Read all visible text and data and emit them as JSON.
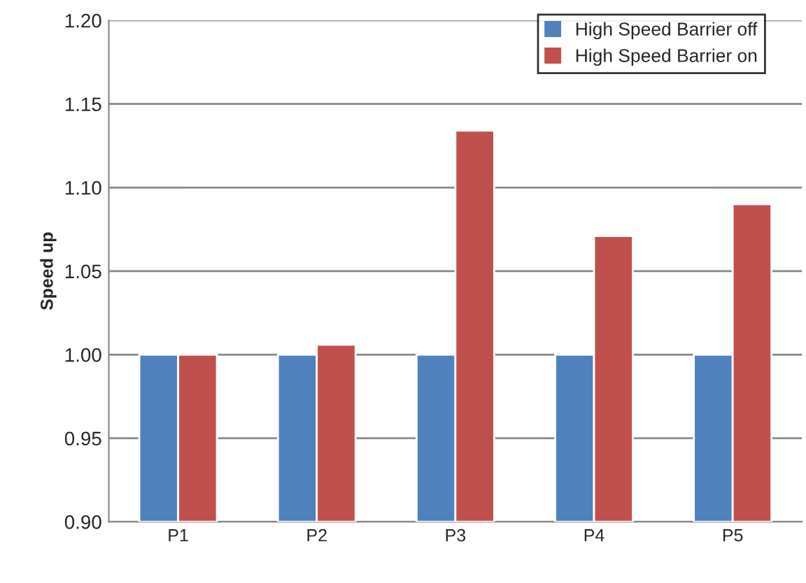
{
  "chart_data": {
    "type": "bar",
    "ylabel": "Speed up",
    "categories": [
      "P1",
      "P2",
      "P3",
      "P4",
      "P5"
    ],
    "series": [
      {
        "name": "High Speed Barrier off",
        "color": "#4f81bd",
        "values": [
          1.0,
          1.0,
          1.0,
          1.0,
          1.0
        ]
      },
      {
        "name": "High Speed Barrier on",
        "color": "#c0504d",
        "values": [
          1.0,
          1.006,
          1.134,
          1.071,
          1.09
        ]
      }
    ],
    "ylim": [
      0.9,
      1.2
    ],
    "yticks": [
      {
        "value": 0.9,
        "label": "0.90"
      },
      {
        "value": 0.95,
        "label": "0.95"
      },
      {
        "value": 1.0,
        "label": "1.00"
      },
      {
        "value": 1.05,
        "label": "1.05"
      },
      {
        "value": 1.1,
        "label": "1.10"
      },
      {
        "value": 1.15,
        "label": "1.15"
      },
      {
        "value": 1.2,
        "label": "1.20"
      }
    ],
    "grid": "y",
    "legend": "top right"
  }
}
